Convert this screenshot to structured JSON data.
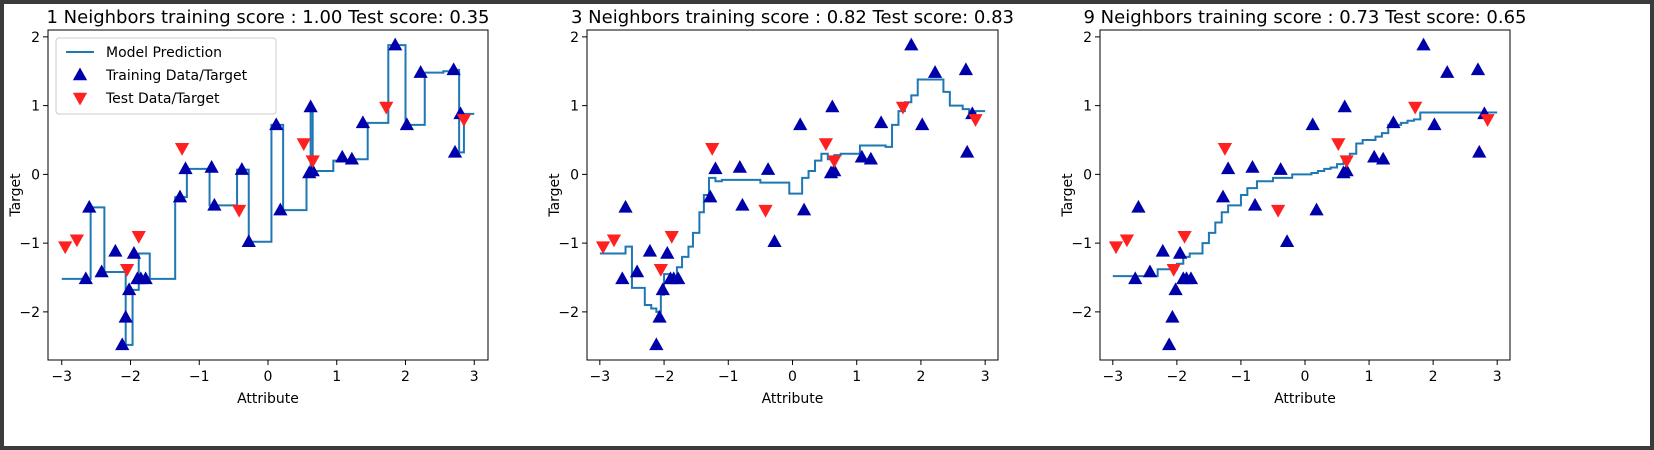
{
  "chart_data": [
    {
      "type": "line",
      "title": "1 Neighbors training score : 1.00 Test score: 0.35",
      "xlabel": "Attribute",
      "ylabel": "Target",
      "xlim": [
        -3.2,
        3.2
      ],
      "ylim": [
        -2.7,
        2.1
      ],
      "xticks": [
        -3,
        -2,
        -1,
        0,
        1,
        2,
        3
      ],
      "yticks": [
        -2,
        -1,
        0,
        1,
        2
      ],
      "grid": false,
      "legend": {
        "placement": "upper-left",
        "entries": [
          "Model Prediction",
          "Training Data/Target",
          "Test Data/Target"
        ]
      },
      "series": [
        {
          "name": "Model Prediction",
          "kind": "step-line",
          "color": "#1f77b4",
          "x": [
            -3.0,
            -2.62,
            -2.58,
            -2.5,
            -2.38,
            -2.15,
            -2.12,
            -2.07,
            -1.97,
            -1.88,
            -1.72,
            -1.55,
            -1.35,
            -1.25,
            -1.18,
            -0.95,
            -0.85,
            -0.72,
            -0.45,
            -0.35,
            -0.28,
            -0.15,
            0.05,
            0.12,
            0.22,
            0.52,
            0.56,
            0.58,
            0.62,
            0.65,
            0.72,
            0.95,
            1.18,
            1.28,
            1.45,
            1.58,
            1.75,
            1.9,
            2.0,
            2.1,
            2.28,
            2.45,
            2.55,
            2.65,
            2.72,
            2.78,
            2.85,
            3.0
          ],
          "y": [
            -1.52,
            -1.52,
            -0.48,
            -0.48,
            -1.42,
            -1.42,
            -1.42,
            -2.48,
            -1.68,
            -1.15,
            -1.52,
            -1.52,
            -0.33,
            -0.33,
            0.08,
            0.08,
            -0.45,
            -0.45,
            0.07,
            0.07,
            -0.98,
            -0.98,
            0.72,
            0.72,
            -0.52,
            -0.52,
            0.02,
            0.02,
            0.98,
            0.05,
            0.05,
            0.2,
            0.22,
            0.22,
            0.75,
            0.75,
            1.88,
            1.88,
            0.72,
            0.72,
            1.48,
            1.48,
            1.5,
            1.52,
            1.52,
            0.32,
            0.88,
            0.88
          ]
        },
        {
          "name": "Training Data/Target",
          "kind": "scatter",
          "marker": "triangle-up",
          "color": "#0000aa",
          "x": [
            -2.65,
            -2.6,
            -2.42,
            -2.22,
            -2.12,
            -2.07,
            -2.02,
            -1.95,
            -1.9,
            -1.85,
            -1.78,
            -1.28,
            -1.2,
            -0.82,
            -0.78,
            -0.38,
            -0.28,
            0.12,
            0.18,
            0.6,
            0.62,
            0.65,
            1.08,
            1.22,
            1.38,
            1.85,
            2.02,
            2.22,
            2.7,
            2.72,
            2.8
          ],
          "y": [
            -1.52,
            -0.48,
            -1.42,
            -1.12,
            -2.48,
            -2.08,
            -1.68,
            -1.15,
            -1.52,
            -1.52,
            -1.52,
            -0.33,
            0.08,
            0.1,
            -0.45,
            0.07,
            -0.98,
            0.72,
            -0.52,
            0.02,
            0.98,
            0.05,
            0.25,
            0.22,
            0.75,
            1.88,
            0.72,
            1.48,
            1.52,
            0.32,
            0.88
          ]
        },
        {
          "name": "Test Data/Target",
          "kind": "scatter",
          "marker": "triangle-down",
          "color": "#ff2020",
          "x": [
            -2.95,
            -2.78,
            -2.05,
            -1.88,
            -1.25,
            -0.42,
            0.52,
            0.65,
            1.72,
            2.85
          ],
          "y": [
            -1.05,
            -0.95,
            -1.38,
            -0.9,
            0.38,
            -0.52,
            0.45,
            0.2,
            0.98,
            0.8
          ]
        }
      ]
    },
    {
      "type": "line",
      "title": "3 Neighbors training score : 0.82 Test score: 0.83",
      "xlabel": "Attribute",
      "ylabel": "Target",
      "xlim": [
        -3.2,
        3.2
      ],
      "ylim": [
        -2.7,
        2.1
      ],
      "xticks": [
        -3,
        -2,
        -1,
        0,
        1,
        2,
        3
      ],
      "yticks": [
        -2,
        -1,
        0,
        1,
        2
      ],
      "grid": false,
      "series": [
        {
          "name": "Model Prediction",
          "kind": "step-line",
          "color": "#1f77b4",
          "x": [
            -3.0,
            -2.75,
            -2.6,
            -2.5,
            -2.38,
            -2.3,
            -2.2,
            -2.12,
            -2.05,
            -2.0,
            -1.9,
            -1.8,
            -1.72,
            -1.62,
            -1.55,
            -1.45,
            -1.38,
            -1.3,
            -1.2,
            -1.1,
            -1.0,
            -0.9,
            -0.8,
            -0.65,
            -0.5,
            -0.35,
            -0.2,
            -0.05,
            0.05,
            0.15,
            0.25,
            0.35,
            0.45,
            0.55,
            0.65,
            0.75,
            0.85,
            0.95,
            1.05,
            1.15,
            1.25,
            1.35,
            1.45,
            1.55,
            1.65,
            1.75,
            1.85,
            1.95,
            2.05,
            2.15,
            2.25,
            2.35,
            2.45,
            2.55,
            2.65,
            2.75,
            2.85,
            3.0
          ],
          "y": [
            -1.15,
            -1.15,
            -1.05,
            -1.65,
            -1.65,
            -1.9,
            -1.95,
            -2.0,
            -1.75,
            -1.45,
            -1.5,
            -1.35,
            -1.2,
            -1.05,
            -0.85,
            -0.55,
            -0.3,
            -0.05,
            -0.1,
            -0.08,
            -0.08,
            -0.08,
            -0.08,
            -0.08,
            -0.12,
            -0.12,
            -0.12,
            -0.28,
            -0.28,
            -0.05,
            0.05,
            0.2,
            0.3,
            0.22,
            0.28,
            0.3,
            0.3,
            0.3,
            0.42,
            0.42,
            0.42,
            0.42,
            0.4,
            0.72,
            0.92,
            1.05,
            1.15,
            1.38,
            1.38,
            1.38,
            1.38,
            1.2,
            1.0,
            1.0,
            0.95,
            0.9,
            0.92,
            0.92
          ]
        },
        {
          "name": "Training Data/Target",
          "kind": "scatter",
          "marker": "triangle-up",
          "color": "#0000aa",
          "x": [
            -2.65,
            -2.6,
            -2.42,
            -2.22,
            -2.12,
            -2.07,
            -2.02,
            -1.95,
            -1.9,
            -1.85,
            -1.78,
            -1.28,
            -1.2,
            -0.82,
            -0.78,
            -0.38,
            -0.28,
            0.12,
            0.18,
            0.6,
            0.62,
            0.65,
            1.08,
            1.22,
            1.38,
            1.85,
            2.02,
            2.22,
            2.7,
            2.72,
            2.8
          ],
          "y": [
            -1.52,
            -0.48,
            -1.42,
            -1.12,
            -2.48,
            -2.08,
            -1.68,
            -1.15,
            -1.52,
            -1.52,
            -1.52,
            -0.33,
            0.08,
            0.1,
            -0.45,
            0.07,
            -0.98,
            0.72,
            -0.52,
            0.02,
            0.98,
            0.05,
            0.25,
            0.22,
            0.75,
            1.88,
            0.72,
            1.48,
            1.52,
            0.32,
            0.88
          ]
        },
        {
          "name": "Test Data/Target",
          "kind": "scatter",
          "marker": "triangle-down",
          "color": "#ff2020",
          "x": [
            -2.95,
            -2.78,
            -2.05,
            -1.88,
            -1.25,
            -0.42,
            0.52,
            0.65,
            1.72,
            2.85
          ],
          "y": [
            -1.05,
            -0.95,
            -1.38,
            -0.9,
            0.38,
            -0.52,
            0.45,
            0.2,
            0.98,
            0.8
          ]
        }
      ]
    },
    {
      "type": "line",
      "title": "9 Neighbors training score : 0.73 Test score: 0.65",
      "xlabel": "Attribute",
      "ylabel": "Target",
      "xlim": [
        -3.2,
        3.2
      ],
      "ylim": [
        -2.7,
        2.1
      ],
      "xticks": [
        -3,
        -2,
        -1,
        0,
        1,
        2,
        3
      ],
      "yticks": [
        -2,
        -1,
        0,
        1,
        2
      ],
      "grid": false,
      "series": [
        {
          "name": "Model Prediction",
          "kind": "step-line",
          "color": "#1f77b4",
          "x": [
            -3.0,
            -2.75,
            -2.5,
            -2.3,
            -2.2,
            -2.1,
            -2.0,
            -1.9,
            -1.8,
            -1.7,
            -1.6,
            -1.5,
            -1.4,
            -1.3,
            -1.2,
            -1.1,
            -1.0,
            -0.9,
            -0.75,
            -0.6,
            -0.5,
            -0.4,
            -0.3,
            -0.2,
            -0.1,
            0.0,
            0.1,
            0.2,
            0.3,
            0.4,
            0.5,
            0.6,
            0.7,
            0.8,
            0.9,
            1.0,
            1.1,
            1.2,
            1.3,
            1.4,
            1.5,
            1.6,
            1.7,
            1.8,
            2.0,
            2.3,
            2.6,
            3.0
          ],
          "y": [
            -1.48,
            -1.48,
            -1.48,
            -1.38,
            -1.38,
            -1.38,
            -1.3,
            -1.2,
            -1.15,
            -1.15,
            -1.0,
            -0.85,
            -0.7,
            -0.55,
            -0.45,
            -0.45,
            -0.3,
            -0.2,
            -0.1,
            -0.1,
            -0.05,
            -0.05,
            -0.05,
            0.0,
            0.0,
            0.0,
            0.02,
            0.05,
            0.08,
            0.1,
            0.15,
            0.2,
            0.3,
            0.45,
            0.5,
            0.5,
            0.55,
            0.6,
            0.72,
            0.72,
            0.75,
            0.78,
            0.8,
            0.9,
            0.9,
            0.9,
            0.9,
            0.9
          ]
        },
        {
          "name": "Training Data/Target",
          "kind": "scatter",
          "marker": "triangle-up",
          "color": "#0000aa",
          "x": [
            -2.65,
            -2.6,
            -2.42,
            -2.22,
            -2.12,
            -2.07,
            -2.02,
            -1.95,
            -1.9,
            -1.85,
            -1.78,
            -1.28,
            -1.2,
            -0.82,
            -0.78,
            -0.38,
            -0.28,
            0.12,
            0.18,
            0.6,
            0.62,
            0.65,
            1.08,
            1.22,
            1.38,
            1.85,
            2.02,
            2.22,
            2.7,
            2.72,
            2.8
          ],
          "y": [
            -1.52,
            -0.48,
            -1.42,
            -1.12,
            -2.48,
            -2.08,
            -1.68,
            -1.15,
            -1.52,
            -1.52,
            -1.52,
            -0.33,
            0.08,
            0.1,
            -0.45,
            0.07,
            -0.98,
            0.72,
            -0.52,
            0.02,
            0.98,
            0.05,
            0.25,
            0.22,
            0.75,
            1.88,
            0.72,
            1.48,
            1.52,
            0.32,
            0.88
          ]
        },
        {
          "name": "Test Data/Target",
          "kind": "scatter",
          "marker": "triangle-down",
          "color": "#ff2020",
          "x": [
            -2.95,
            -2.78,
            -2.05,
            -1.88,
            -1.25,
            -0.42,
            0.52,
            0.65,
            1.72,
            2.85
          ],
          "y": [
            -1.05,
            -0.95,
            -1.38,
            -0.9,
            0.38,
            -0.52,
            0.45,
            0.2,
            0.98,
            0.8
          ]
        }
      ]
    }
  ]
}
